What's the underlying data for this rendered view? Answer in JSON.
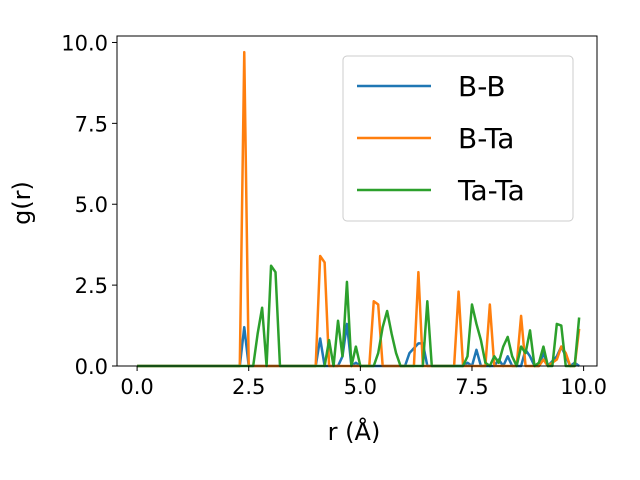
{
  "chart_data": {
    "type": "line",
    "xlabel": "r (Å)",
    "ylabel": "g(r)",
    "xlim": [
      -0.45,
      10.3
    ],
    "ylim": [
      0,
      10.2
    ],
    "xticks": [
      "0.0",
      "2.5",
      "5.0",
      "7.5",
      "10.0"
    ],
    "yticks": [
      "0.0",
      "2.5",
      "5.0",
      "7.5",
      "10.0"
    ],
    "grid": false,
    "legend_position": "top-right",
    "series": [
      {
        "name": "B-B",
        "color": "#1f77b4",
        "points": [
          [
            0,
            0
          ],
          [
            2.3,
            0
          ],
          [
            2.4,
            1.2
          ],
          [
            2.5,
            0
          ],
          [
            4,
            0
          ],
          [
            4.1,
            0.85
          ],
          [
            4.2,
            0
          ],
          [
            4.5,
            0
          ],
          [
            4.6,
            0.3
          ],
          [
            4.7,
            1.3
          ],
          [
            4.8,
            0
          ],
          [
            4.9,
            0.1
          ],
          [
            5,
            0
          ],
          [
            6,
            0
          ],
          [
            6.1,
            0.4
          ],
          [
            6.3,
            0.7
          ],
          [
            6.4,
            0.7
          ],
          [
            6.5,
            0
          ],
          [
            7.3,
            0
          ],
          [
            7.4,
            0.1
          ],
          [
            7.5,
            0
          ],
          [
            7.6,
            0.5
          ],
          [
            7.7,
            0
          ],
          [
            8,
            0
          ],
          [
            8.1,
            0.2
          ],
          [
            8.2,
            0
          ],
          [
            8.3,
            0.3
          ],
          [
            8.4,
            0
          ],
          [
            8.6,
            0
          ],
          [
            8.7,
            0.5
          ],
          [
            8.8,
            0.3
          ],
          [
            8.9,
            0
          ],
          [
            9,
            0
          ],
          [
            9.1,
            0.4
          ],
          [
            9.2,
            0
          ],
          [
            9.4,
            0.3
          ],
          [
            9.5,
            0.6
          ],
          [
            9.6,
            0.3
          ],
          [
            9.7,
            0
          ],
          [
            9.8,
            0.1
          ],
          [
            9.9,
            0
          ]
        ]
      },
      {
        "name": "B-Ta",
        "color": "#ff7f0e",
        "points": [
          [
            0,
            0
          ],
          [
            2.3,
            0
          ],
          [
            2.4,
            9.7
          ],
          [
            2.5,
            0
          ],
          [
            4,
            0
          ],
          [
            4.1,
            3.4
          ],
          [
            4.2,
            3.2
          ],
          [
            4.3,
            0
          ],
          [
            5.2,
            0
          ],
          [
            5.3,
            2.0
          ],
          [
            5.4,
            1.9
          ],
          [
            5.5,
            0
          ],
          [
            6.2,
            0
          ],
          [
            6.3,
            2.9
          ],
          [
            6.4,
            0
          ],
          [
            7.1,
            0
          ],
          [
            7.2,
            2.3
          ],
          [
            7.3,
            0
          ],
          [
            7.8,
            0
          ],
          [
            7.9,
            1.9
          ],
          [
            8,
            0
          ],
          [
            8.5,
            0
          ],
          [
            8.6,
            1.55
          ],
          [
            8.7,
            0
          ],
          [
            9,
            0
          ],
          [
            9.1,
            0.2
          ],
          [
            9.2,
            0
          ],
          [
            9.4,
            0.2
          ],
          [
            9.5,
            0.6
          ],
          [
            9.6,
            0.4
          ],
          [
            9.7,
            0
          ],
          [
            9.8,
            0
          ],
          [
            9.9,
            1.15
          ]
        ]
      },
      {
        "name": "Ta-Ta",
        "color": "#2ca02c",
        "points": [
          [
            0,
            0
          ],
          [
            2.6,
            0
          ],
          [
            2.7,
            1.0
          ],
          [
            2.8,
            1.8
          ],
          [
            2.9,
            0
          ],
          [
            3,
            3.1
          ],
          [
            3.1,
            2.9
          ],
          [
            3.2,
            0
          ],
          [
            4.2,
            0
          ],
          [
            4.3,
            0.8
          ],
          [
            4.4,
            0
          ],
          [
            4.5,
            1.4
          ],
          [
            4.6,
            0.3
          ],
          [
            4.7,
            2.6
          ],
          [
            4.8,
            0
          ],
          [
            4.9,
            0.6
          ],
          [
            5,
            0
          ],
          [
            5.3,
            0
          ],
          [
            5.4,
            0.4
          ],
          [
            5.5,
            1.2
          ],
          [
            5.6,
            1.7
          ],
          [
            5.7,
            1.0
          ],
          [
            5.8,
            0.4
          ],
          [
            5.9,
            0
          ],
          [
            6.4,
            0
          ],
          [
            6.5,
            2.0
          ],
          [
            6.6,
            0
          ],
          [
            7.3,
            0
          ],
          [
            7.4,
            0.3
          ],
          [
            7.5,
            1.9
          ],
          [
            7.6,
            1.3
          ],
          [
            7.7,
            0.8
          ],
          [
            7.8,
            0.1
          ],
          [
            7.9,
            0
          ],
          [
            8,
            0.3
          ],
          [
            8.1,
            0.1
          ],
          [
            8.2,
            0.6
          ],
          [
            8.3,
            0.9
          ],
          [
            8.4,
            0.3
          ],
          [
            8.5,
            0
          ],
          [
            8.6,
            0.6
          ],
          [
            8.7,
            0.4
          ],
          [
            8.8,
            1.1
          ],
          [
            8.9,
            0
          ],
          [
            9,
            0.1
          ],
          [
            9.1,
            0.6
          ],
          [
            9.2,
            0
          ],
          [
            9.3,
            0
          ],
          [
            9.4,
            1.3
          ],
          [
            9.5,
            1.25
          ],
          [
            9.6,
            0
          ],
          [
            9.7,
            0
          ],
          [
            9.8,
            0
          ],
          [
            9.9,
            1.5
          ]
        ]
      }
    ]
  }
}
